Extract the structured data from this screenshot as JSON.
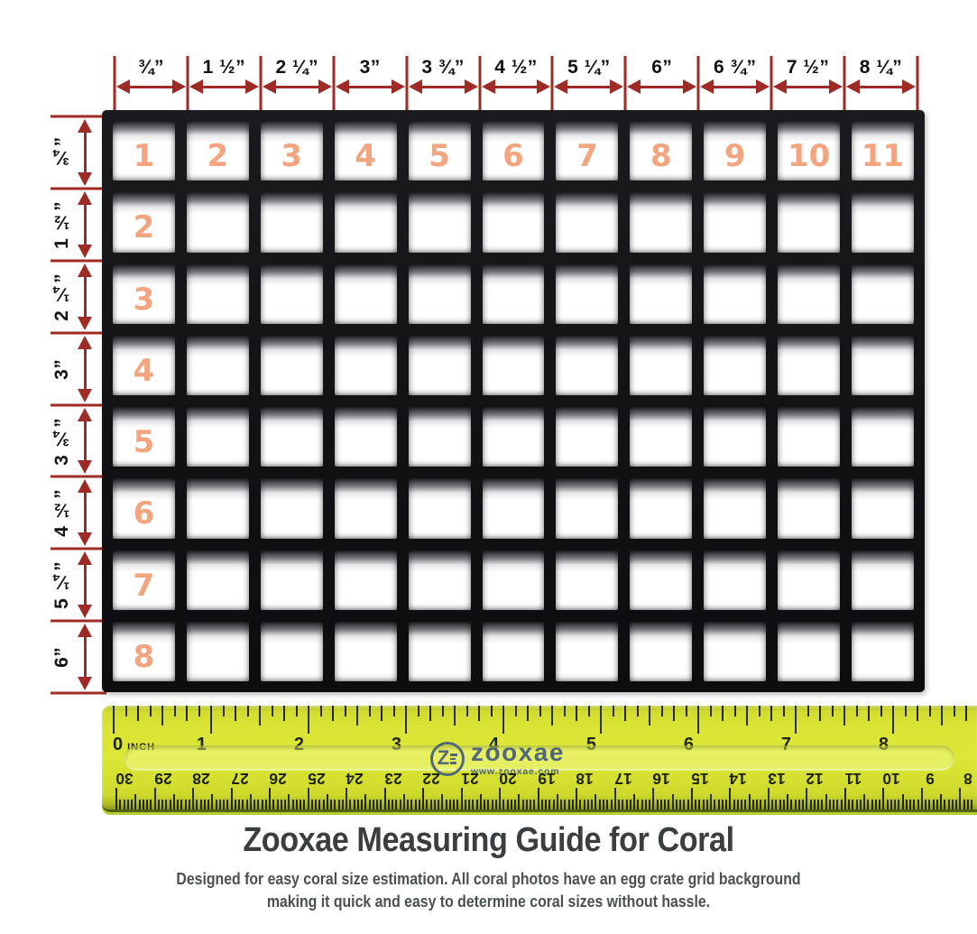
{
  "page": {
    "title": "Zooxae Measuring Guide for Coral",
    "subtitle_line1": "Designed for easy coral size estimation. All coral photos have an egg crate grid background",
    "subtitle_line2": "making it quick and easy to determine coral sizes without hassle."
  },
  "colors": {
    "dimension_red": "#9e2b26",
    "cell_number_salmon": "#f4a47e",
    "ruler_yellow": "#d9e334",
    "tick_dark": "#232a10",
    "logo_slate": "#53677a",
    "title_dark": "#3a3e41",
    "subtitle_gray": "#4b5053"
  },
  "top_dimensions": {
    "labels": [
      "¾”",
      "1 ½”",
      "2 ¼”",
      "3”",
      "3 ¾”",
      "4 ½”",
      "5 ¼”",
      "6”",
      "6 ¾”",
      "7 ½”",
      "8 ¼”"
    ]
  },
  "left_dimensions": {
    "labels": [
      "¾”",
      "1 ½”",
      "2 ¼”",
      "3”",
      "3 ¾”",
      "4 ½”",
      "5 ¼”",
      "6”"
    ]
  },
  "grid": {
    "columns": 11,
    "rows": 8,
    "top_row_numbers": [
      "1",
      "2",
      "3",
      "4",
      "5",
      "6",
      "7",
      "8",
      "9",
      "10",
      "11"
    ],
    "left_column_numbers": [
      "2",
      "3",
      "4",
      "5",
      "6",
      "7",
      "8"
    ]
  },
  "ruler": {
    "zero_number": "0",
    "zero_unit": "INCH",
    "inch_numbers": [
      "1",
      "2",
      "3",
      "4",
      "5",
      "6",
      "7",
      "8"
    ],
    "cm_numbers": [
      "30",
      "29",
      "28",
      "27",
      "26",
      "25",
      "24",
      "23",
      "22",
      "21",
      "20",
      "19",
      "18",
      "17",
      "16",
      "15",
      "14",
      "13",
      "12",
      "11",
      "10",
      "9",
      "8"
    ],
    "logo": {
      "letter": "Z",
      "name": "zooxae",
      "url": "www.zooxae.com"
    }
  }
}
